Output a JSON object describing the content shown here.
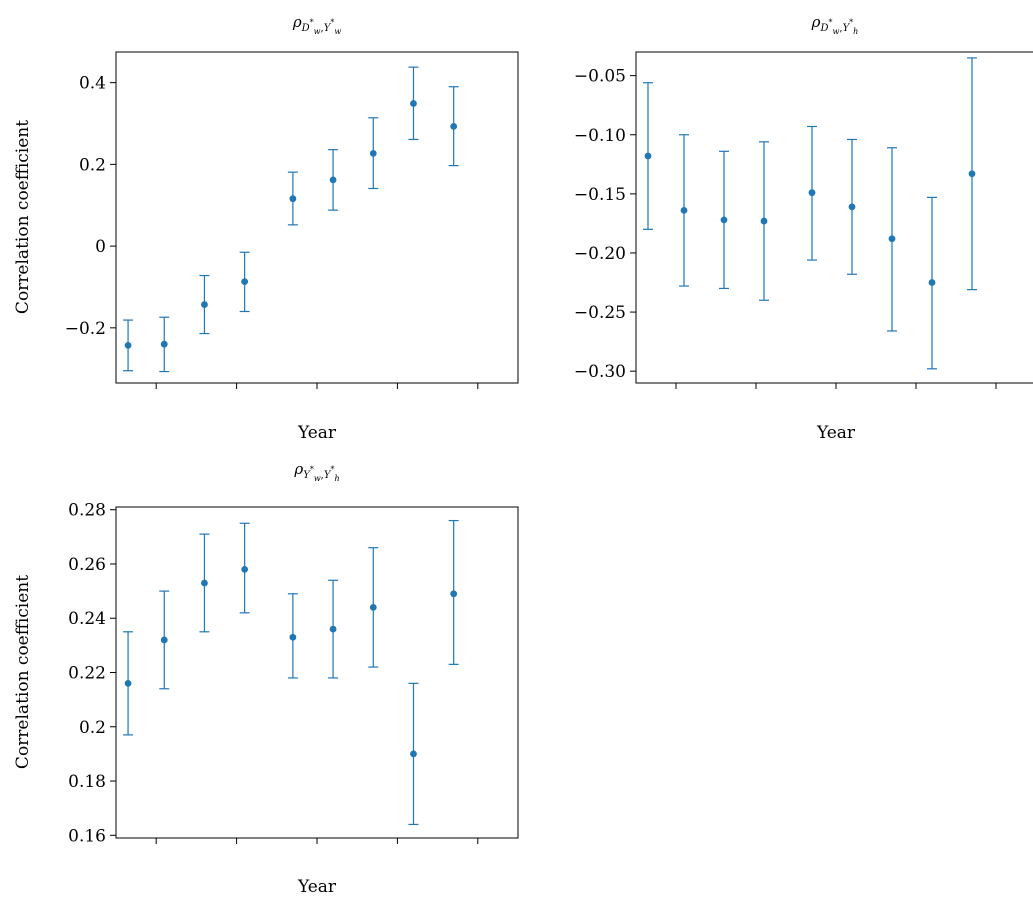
{
  "chart_data": [
    {
      "type": "scatter",
      "title": {
        "base": "ρ",
        "sub1": "D",
        "sub1sub": "w",
        "sub2": "Y",
        "sub2sub": "w"
      },
      "xlabel": "Year",
      "ylabel": "Correlation coefficient",
      "yticks": [
        {
          "value": -0.2,
          "label": "−0.2"
        },
        {
          "value": 0,
          "label": "0"
        },
        {
          "value": 0.2,
          "label": "0.2"
        },
        {
          "value": 0.4,
          "label": "0.4"
        }
      ],
      "ylim": [
        -0.335,
        0.475
      ],
      "xlim": [
        0.0,
        10.0
      ],
      "xticks": [
        1,
        3,
        5,
        7,
        9
      ],
      "grid": false,
      "x": [
        0.3,
        1.2,
        2.2,
        3.2,
        4.4,
        5.4,
        6.4,
        7.4,
        8.4
      ],
      "values": [
        -0.243,
        -0.24,
        -0.143,
        -0.087,
        0.116,
        0.162,
        0.227,
        0.349,
        0.293
      ],
      "err_low": [
        -0.305,
        -0.307,
        -0.214,
        -0.16,
        0.052,
        0.088,
        0.141,
        0.261,
        0.197
      ],
      "err_high": [
        -0.181,
        -0.174,
        -0.072,
        -0.015,
        0.181,
        0.236,
        0.314,
        0.438,
        0.39
      ],
      "color": "#1f77b4"
    },
    {
      "type": "scatter",
      "title": {
        "base": "ρ",
        "sub1": "D",
        "sub1sub": "w",
        "sub2": "Y",
        "sub2sub": "h"
      },
      "xlabel": "Year",
      "ylabel": "",
      "yticks": [
        {
          "value": -0.3,
          "label": "−0.30"
        },
        {
          "value": -0.25,
          "label": "−0.25"
        },
        {
          "value": -0.2,
          "label": "−0.20"
        },
        {
          "value": -0.15,
          "label": "−0.15"
        },
        {
          "value": -0.1,
          "label": "−0.10"
        },
        {
          "value": -0.05,
          "label": "−0.05"
        }
      ],
      "ylim": [
        -0.31,
        -0.03
      ],
      "xlim": [
        0.0,
        10.0
      ],
      "xticks": [
        1,
        3,
        5,
        7,
        9
      ],
      "grid": false,
      "x": [
        0.3,
        1.2,
        2.2,
        3.2,
        4.4,
        5.4,
        6.4,
        7.4,
        8.4
      ],
      "values": [
        -0.118,
        -0.164,
        -0.172,
        -0.173,
        -0.149,
        -0.161,
        -0.188,
        -0.225,
        -0.133
      ],
      "err_low": [
        -0.18,
        -0.228,
        -0.23,
        -0.24,
        -0.206,
        -0.218,
        -0.266,
        -0.298,
        -0.231
      ],
      "err_high": [
        -0.056,
        -0.1,
        -0.114,
        -0.106,
        -0.093,
        -0.104,
        -0.111,
        -0.153,
        -0.035
      ],
      "color": "#1f77b4"
    },
    {
      "type": "scatter",
      "title": {
        "base": "ρ",
        "sub1": "Y",
        "sub1sub": "w",
        "sub2": "Y",
        "sub2sub": "h"
      },
      "xlabel": "Year",
      "ylabel": "Correlation coefficient",
      "yticks": [
        {
          "value": 0.16,
          "label": "0.16"
        },
        {
          "value": 0.18,
          "label": "0.18"
        },
        {
          "value": 0.2,
          "label": "0.2"
        },
        {
          "value": 0.22,
          "label": "0.22"
        },
        {
          "value": 0.24,
          "label": "0.24"
        },
        {
          "value": 0.26,
          "label": "0.26"
        },
        {
          "value": 0.28,
          "label": "0.28"
        }
      ],
      "ylim": [
        0.159,
        0.281
      ],
      "xlim": [
        0.0,
        10.0
      ],
      "xticks": [
        1,
        3,
        5,
        7,
        9
      ],
      "grid": false,
      "x": [
        0.3,
        1.2,
        2.2,
        3.2,
        4.4,
        5.4,
        6.4,
        7.4,
        8.4
      ],
      "values": [
        0.216,
        0.232,
        0.253,
        0.258,
        0.233,
        0.236,
        0.244,
        0.19,
        0.249
      ],
      "err_low": [
        0.197,
        0.214,
        0.235,
        0.242,
        0.218,
        0.218,
        0.222,
        0.164,
        0.223
      ],
      "err_high": [
        0.235,
        0.25,
        0.271,
        0.275,
        0.249,
        0.254,
        0.266,
        0.216,
        0.276
      ],
      "color": "#1f77b4"
    }
  ]
}
